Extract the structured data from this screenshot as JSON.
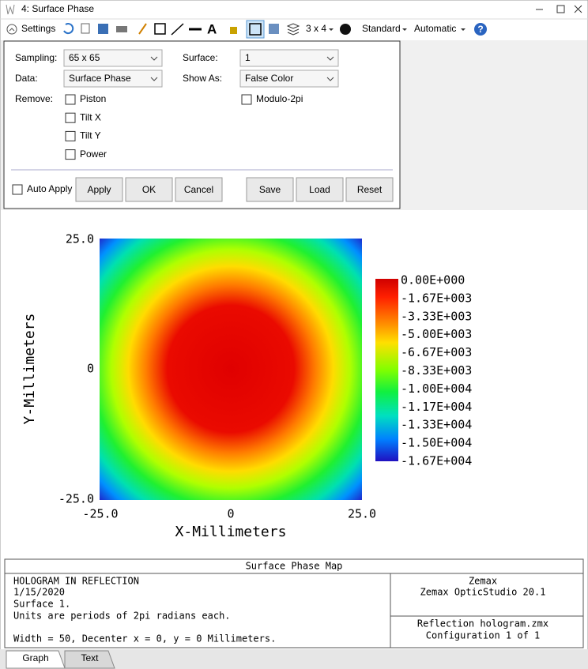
{
  "window": {
    "title": "4: Surface Phase"
  },
  "toolbar": {
    "settings": "Settings",
    "layout": "3 x 4",
    "standard": "Standard",
    "automatic": "Automatic"
  },
  "settings": {
    "sampling_label": "Sampling:",
    "sampling": "65 x 65",
    "data_label": "Data:",
    "data": "Surface Phase",
    "remove_label": "Remove:",
    "remove": [
      "Piston",
      "Tilt X",
      "Tilt Y",
      "Power"
    ],
    "surface_label": "Surface:",
    "surface": "1",
    "show_as_label": "Show As:",
    "show_as": "False Color",
    "modulo": "Modulo-2pi",
    "auto_apply": "Auto Apply",
    "buttons": [
      "Apply",
      "OK",
      "Cancel",
      "Save",
      "Load",
      "Reset"
    ]
  },
  "plot": {
    "x_label": "X-Millimeters",
    "y_label": "Y-Millimeters",
    "x_ticks": [
      "-25.0",
      "0",
      "25.0"
    ],
    "y_ticks": [
      "25.0",
      "0",
      "-25.0"
    ],
    "colorbar": [
      "0.00E+000",
      "-1.67E+003",
      "-3.33E+003",
      "-5.00E+003",
      "-6.67E+003",
      "-8.33E+003",
      "-1.00E+004",
      "-1.17E+004",
      "-1.33E+004",
      "-1.50E+004",
      "-1.67E+004"
    ]
  },
  "footer": {
    "title": "Surface Phase Map",
    "left": [
      "HOLOGRAM IN REFLECTION",
      "1/15/2020",
      "Surface 1.",
      "Units are periods of 2pi radians each.",
      "Width = 50, Decenter x = 0, y = 0 Millimeters."
    ],
    "right_top": [
      "Zemax",
      "Zemax OpticStudio 20.1"
    ],
    "right_bottom": [
      "Reflection hologram.zmx",
      "Configuration 1 of 1"
    ]
  },
  "tabs": [
    "Graph",
    "Text"
  ]
}
